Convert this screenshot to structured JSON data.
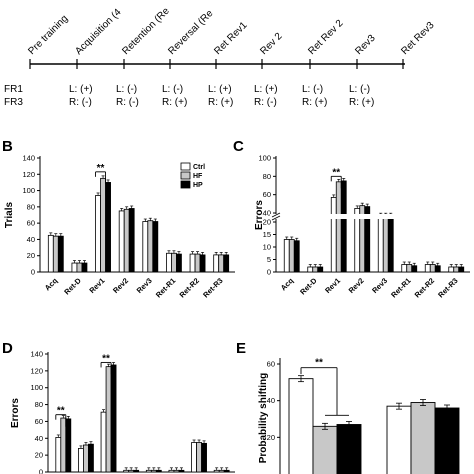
{
  "timeline": {
    "phases": [
      "Pre training",
      "Acquisition (4",
      "Retention (Re",
      "Reversal (Re",
      "Ret Rev1",
      "Rev 2",
      "Ret Rev 2",
      "Rev3",
      "Ret Rev3"
    ],
    "row_labels": [
      "FR1",
      "FR3"
    ],
    "fr1": [
      "L: (+)",
      "L: (-)",
      "L: (-)",
      "L: (+)",
      "L: (+)",
      "L: (-)",
      "L: (-)"
    ],
    "fr3": [
      "R: (-)",
      "R: (-)",
      "R: (+)",
      "R: (+)",
      "R: (-)",
      "R: (+)",
      "R: (+)"
    ]
  },
  "chart_data": [
    {
      "panel": "B",
      "type": "bar",
      "ylabel": "Trials",
      "ylim": [
        0,
        140
      ],
      "yticks": [
        0,
        20,
        40,
        60,
        80,
        100,
        120,
        140
      ],
      "categories": [
        "Acq",
        "Ret-D",
        "Rev1",
        "Rev2",
        "Rev3",
        "Ret-R1",
        "Ret-R2",
        "Ret-R3"
      ],
      "series": [
        {
          "name": "Ctrl",
          "values": [
            45,
            11,
            94,
            75,
            62,
            23,
            22,
            21
          ]
        },
        {
          "name": "HF",
          "values": [
            44,
            11,
            115,
            77,
            63,
            23,
            22,
            21
          ]
        },
        {
          "name": "HP",
          "values": [
            44,
            11,
            110,
            78,
            62,
            22,
            21,
            21
          ]
        }
      ],
      "legend": [
        "Ctrl",
        "HF",
        "HP"
      ],
      "legend_position": "top-right",
      "significance": "**"
    },
    {
      "panel": "C",
      "type": "bar",
      "ylabel": "Errors",
      "yticks": [
        0,
        5,
        10,
        15,
        20,
        40,
        60,
        80,
        100
      ],
      "axis_break": [
        20,
        40
      ],
      "categories": [
        "Acq",
        "Ret-D",
        "Rev1",
        "Rev2",
        "Rev3",
        "Ret-R1",
        "Ret-R2",
        "Ret-R3"
      ],
      "series": [
        {
          "name": "Ctrl",
          "values": [
            13,
            2,
            57,
            45,
            34,
            3,
            3,
            2
          ]
        },
        {
          "name": "HF",
          "values": [
            13,
            2,
            74,
            48,
            34,
            3,
            3,
            2
          ]
        },
        {
          "name": "HP",
          "values": [
            12.5,
            2,
            75,
            47,
            34,
            2.5,
            2.5,
            2
          ]
        }
      ],
      "significance": "**"
    },
    {
      "panel": "D",
      "type": "bar",
      "ylabel": "Errors",
      "ylim": [
        0,
        140
      ],
      "yticks": [
        0,
        20,
        40,
        60,
        80,
        100,
        120,
        140
      ],
      "categories": [
        "",
        "",
        "",
        "",
        "",
        "",
        "",
        ""
      ],
      "series": [
        {
          "name": "Ctrl",
          "values": [
            41,
            28,
            71,
            2,
            2,
            2,
            35,
            2
          ]
        },
        {
          "name": "HF",
          "values": [
            64,
            32,
            125,
            2,
            2,
            2,
            35,
            2
          ]
        },
        {
          "name": "HP",
          "values": [
            63,
            33,
            127,
            2,
            2,
            2,
            34,
            2
          ]
        }
      ],
      "significance": [
        "**",
        "**"
      ]
    },
    {
      "panel": "E",
      "type": "bar",
      "ylabel": "Probability shifting",
      "ylim": [
        0,
        60
      ],
      "yticks": [
        20,
        40,
        60
      ],
      "categories": [
        "",
        ""
      ],
      "series": [
        {
          "name": "Ctrl",
          "values": [
            52,
            37
          ]
        },
        {
          "name": "HF",
          "values": [
            26,
            39
          ]
        },
        {
          "name": "HP",
          "values": [
            27,
            36
          ]
        }
      ],
      "significance": "**"
    }
  ]
}
